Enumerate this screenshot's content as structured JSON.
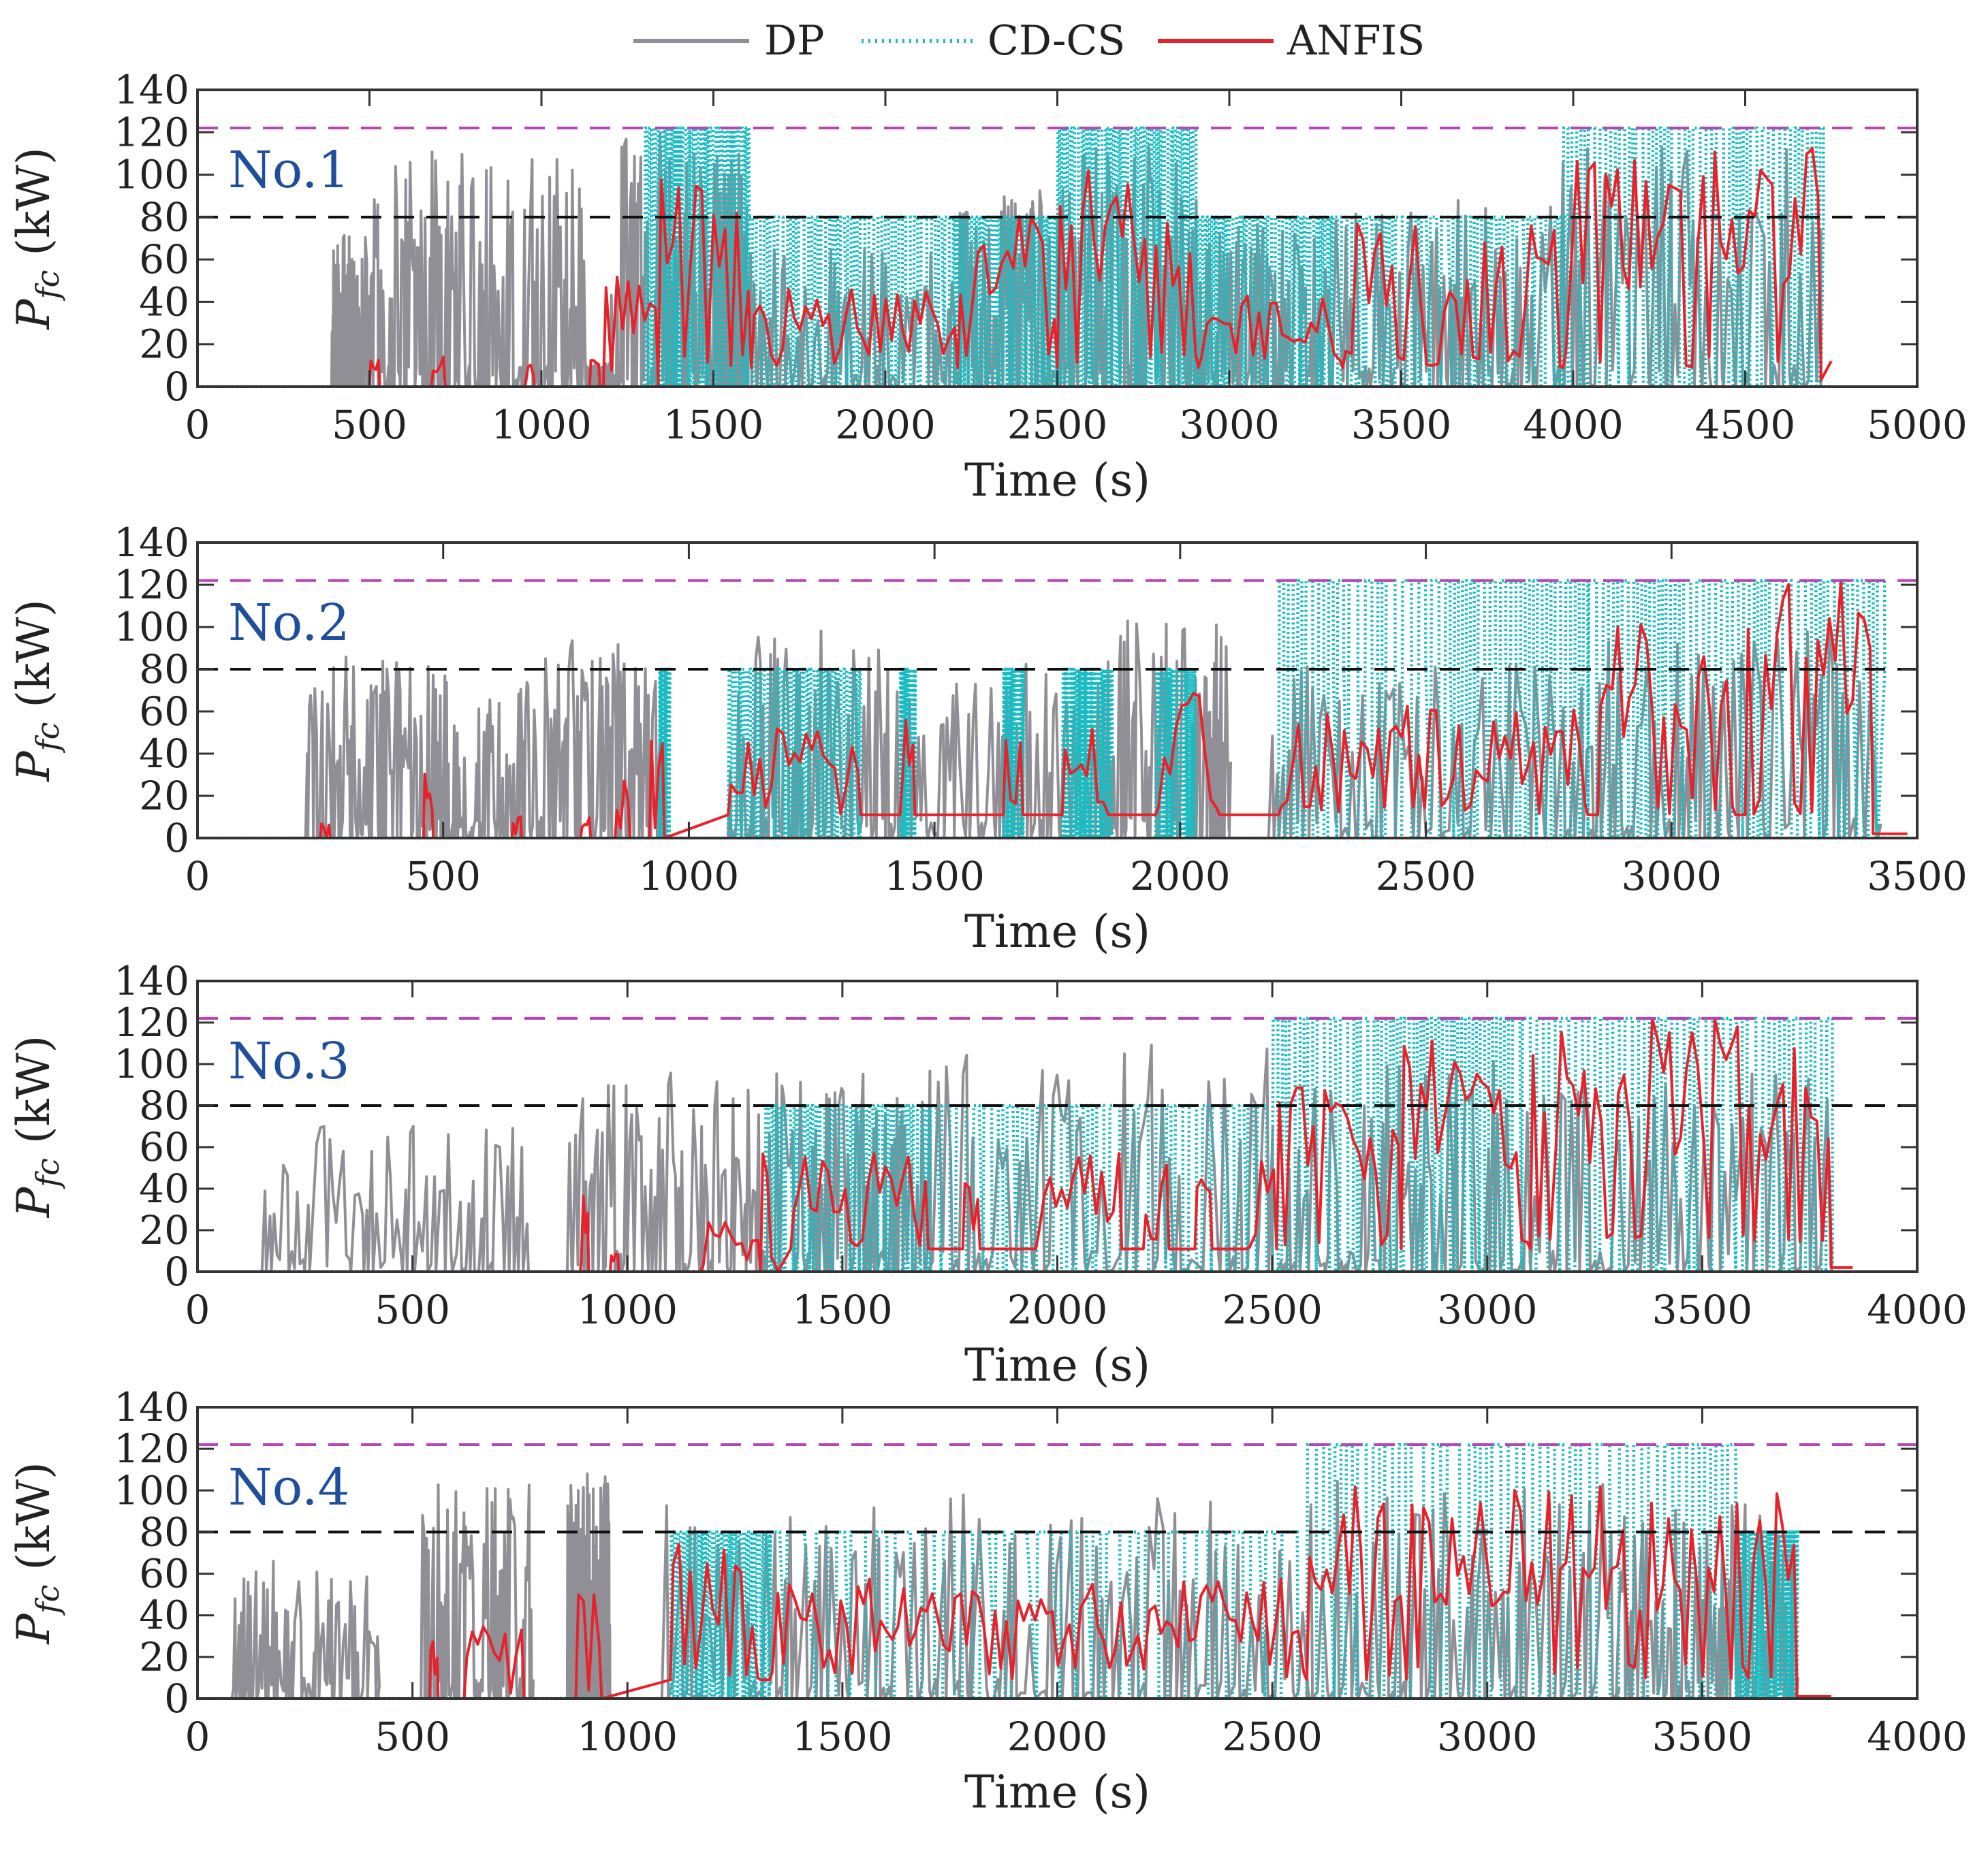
{
  "colors": {
    "dp": "#8f8f95",
    "cdcs": "#19bcc2",
    "anfis": "#e8222a",
    "ref80": "#111111",
    "ref122": "#b347b3",
    "label": "#1f4e9c",
    "axis": "#333333"
  },
  "legend": {
    "dp": "DP",
    "cdcs": "CD-CS",
    "anfis": "ANFIS"
  },
  "chart_data": [
    {
      "type": "line",
      "label": "No.1",
      "xlabel": "Time (s)",
      "ylabel_main": "P",
      "ylabel_sub": "fc",
      "ylabel_unit": " (kW)",
      "xlim": [
        0,
        5000
      ],
      "ylim": [
        0,
        140
      ],
      "xticks": [
        0,
        500,
        1000,
        1500,
        2000,
        2500,
        3000,
        3500,
        4000,
        4500,
        5000
      ],
      "yticks": [
        0,
        20,
        40,
        60,
        80,
        100,
        120,
        140
      ],
      "reference_lines": [
        80,
        122
      ],
      "end_time": 4750,
      "dp_segments": [
        [
          390,
          480,
          65
        ],
        [
          480,
          760,
          105
        ],
        [
          760,
          1130,
          100
        ],
        [
          1130,
          1200,
          10
        ],
        [
          1200,
          1500,
          110
        ],
        [
          1500,
          1600,
          100
        ],
        [
          1600,
          2200,
          60
        ],
        [
          2200,
          2520,
          85
        ],
        [
          2520,
          2900,
          105
        ],
        [
          2900,
          3300,
          70
        ],
        [
          3300,
          3960,
          80
        ],
        [
          3960,
          4720,
          105
        ]
      ],
      "cdcs_segments": [
        [
          1300,
          1600,
          "h"
        ],
        [
          1600,
          2200,
          "m"
        ],
        [
          2200,
          2500,
          "m"
        ],
        [
          2500,
          2900,
          "h"
        ],
        [
          2900,
          3300,
          "m"
        ],
        [
          3300,
          3970,
          "m"
        ],
        [
          3970,
          4720,
          "h"
        ]
      ],
      "anfis_segments": [
        [
          500,
          530,
          12
        ],
        [
          680,
          720,
          15
        ],
        [
          950,
          980,
          10
        ],
        [
          1140,
          1170,
          12
        ],
        [
          1180,
          1340,
          55
        ],
        [
          1340,
          1610,
          85
        ],
        [
          1610,
          2210,
          40
        ],
        [
          2210,
          2500,
          70
        ],
        [
          2500,
          2910,
          90
        ],
        [
          2910,
          3330,
          40
        ],
        [
          3330,
          3970,
          70
        ],
        [
          3970,
          4720,
          100
        ]
      ],
      "anfis_floor": 9,
      "anfis_tail": [
        [
          4720,
          3
        ],
        [
          4750,
          12
        ]
      ]
    },
    {
      "type": "line",
      "label": "No.2",
      "xlabel": "Time (s)",
      "ylabel_main": "P",
      "ylabel_sub": "fc",
      "ylabel_unit": " (kW)",
      "xlim": [
        0,
        3500
      ],
      "ylim": [
        0,
        140
      ],
      "xticks": [
        0,
        500,
        1000,
        1500,
        2000,
        2500,
        3000,
        3500
      ],
      "yticks": [
        0,
        20,
        40,
        60,
        80,
        100,
        120,
        140
      ],
      "reference_lines": [
        80,
        122
      ],
      "end_time": 3480,
      "dp_segments": [
        [
          220,
          480,
          80
        ],
        [
          480,
          700,
          70
        ],
        [
          700,
          940,
          85
        ],
        [
          1080,
          1400,
          90
        ],
        [
          1400,
          1850,
          75
        ],
        [
          1850,
          2100,
          95
        ],
        [
          2180,
          2830,
          75
        ],
        [
          2830,
          3420,
          90
        ]
      ],
      "cdcs_segments": [
        [
          940,
          960,
          "m"
        ],
        [
          1080,
          1350,
          "m"
        ],
        [
          1430,
          1460,
          "m"
        ],
        [
          1640,
          1680,
          "m"
        ],
        [
          1760,
          1860,
          "m"
        ],
        [
          1950,
          2030,
          "m"
        ],
        [
          2200,
          2830,
          "h"
        ],
        [
          2830,
          3420,
          "h"
        ]
      ],
      "anfis_segments": [
        [
          250,
          270,
          10
        ],
        [
          460,
          480,
          28
        ],
        [
          640,
          660,
          18
        ],
        [
          780,
          800,
          10
        ],
        [
          850,
          880,
          25
        ],
        [
          920,
          950,
          45
        ],
        [
          1080,
          1350,
          45
        ],
        [
          1430,
          1460,
          50
        ],
        [
          1640,
          1680,
          50
        ],
        [
          1760,
          1860,
          55
        ],
        [
          1950,
          2080,
          60
        ],
        [
          2200,
          2830,
          55
        ],
        [
          2850,
          3130,
          95
        ],
        [
          3150,
          3410,
          110
        ]
      ],
      "anfis_floor": 11,
      "anfis_tail": [
        [
          3410,
          2
        ],
        [
          3480,
          2
        ]
      ]
    },
    {
      "type": "line",
      "label": "No.3",
      "xlabel": "Time (s)",
      "ylabel_main": "P",
      "ylabel_sub": "fc",
      "ylabel_unit": " (kW)",
      "xlim": [
        0,
        4000
      ],
      "ylim": [
        0,
        140
      ],
      "xticks": [
        0,
        500,
        1000,
        1500,
        2000,
        2500,
        3000,
        3500,
        4000
      ],
      "yticks": [
        0,
        20,
        40,
        60,
        80,
        100,
        120,
        140
      ],
      "reference_lines": [
        80,
        122
      ],
      "end_time": 3850,
      "dp_segments": [
        [
          150,
          760,
          65
        ],
        [
          860,
          1310,
          90
        ],
        [
          1310,
          1700,
          90
        ],
        [
          1700,
          2500,
          100
        ],
        [
          2500,
          3100,
          95
        ],
        [
          3100,
          3800,
          90
        ]
      ],
      "cdcs_segments": [
        [
          1320,
          1700,
          "m"
        ],
        [
          1700,
          2500,
          "n"
        ],
        [
          2500,
          3080,
          "h"
        ],
        [
          3080,
          3800,
          "h"
        ]
      ],
      "anfis_segments": [
        [
          890,
          910,
          35
        ],
        [
          960,
          980,
          10
        ],
        [
          1170,
          1310,
          25
        ],
        [
          1310,
          1350,
          70
        ],
        [
          1380,
          1700,
          50
        ],
        [
          1780,
          1820,
          40
        ],
        [
          1950,
          2150,
          50
        ],
        [
          2200,
          2260,
          60
        ],
        [
          2320,
          2360,
          60
        ],
        [
          2440,
          2510,
          60
        ],
        [
          2510,
          2800,
          80
        ],
        [
          2800,
          3100,
          100
        ],
        [
          3100,
          3800,
          112
        ]
      ],
      "anfis_floor": 11,
      "anfis_tail": [
        [
          3800,
          2
        ],
        [
          3850,
          2
        ]
      ]
    },
    {
      "type": "line",
      "label": "No.4",
      "xlabel": "Time (s)",
      "ylabel_main": "P",
      "ylabel_sub": "fc",
      "ylabel_unit": " (kW)",
      "xlim": [
        0,
        4000
      ],
      "ylim": [
        0,
        140
      ],
      "xticks": [
        0,
        500,
        1000,
        1500,
        2000,
        2500,
        3000,
        3500,
        4000
      ],
      "yticks": [
        0,
        20,
        40,
        60,
        80,
        100,
        120,
        140
      ],
      "reference_lines": [
        80,
        122
      ],
      "end_time": 3800,
      "dp_segments": [
        [
          80,
          420,
          60
        ],
        [
          520,
          780,
          95
        ],
        [
          860,
          960,
          100
        ],
        [
          1080,
          1800,
          90
        ],
        [
          1800,
          2580,
          90
        ],
        [
          2580,
          3300,
          95
        ],
        [
          3300,
          3720,
          85
        ]
      ],
      "cdcs_segments": [
        [
          1100,
          1330,
          "m"
        ],
        [
          1330,
          2580,
          "m"
        ],
        [
          2580,
          3580,
          "h"
        ],
        [
          3580,
          3720,
          "m"
        ]
      ],
      "anfis_segments": [
        [
          540,
          560,
          25
        ],
        [
          620,
          760,
          30
        ],
        [
          880,
          940,
          45
        ],
        [
          1100,
          1310,
          70
        ],
        [
          1330,
          2580,
          50
        ],
        [
          2580,
          3720,
          90
        ]
      ],
      "anfis_floor": 9,
      "anfis_tail": [
        [
          3720,
          1
        ],
        [
          3800,
          1
        ]
      ]
    }
  ]
}
